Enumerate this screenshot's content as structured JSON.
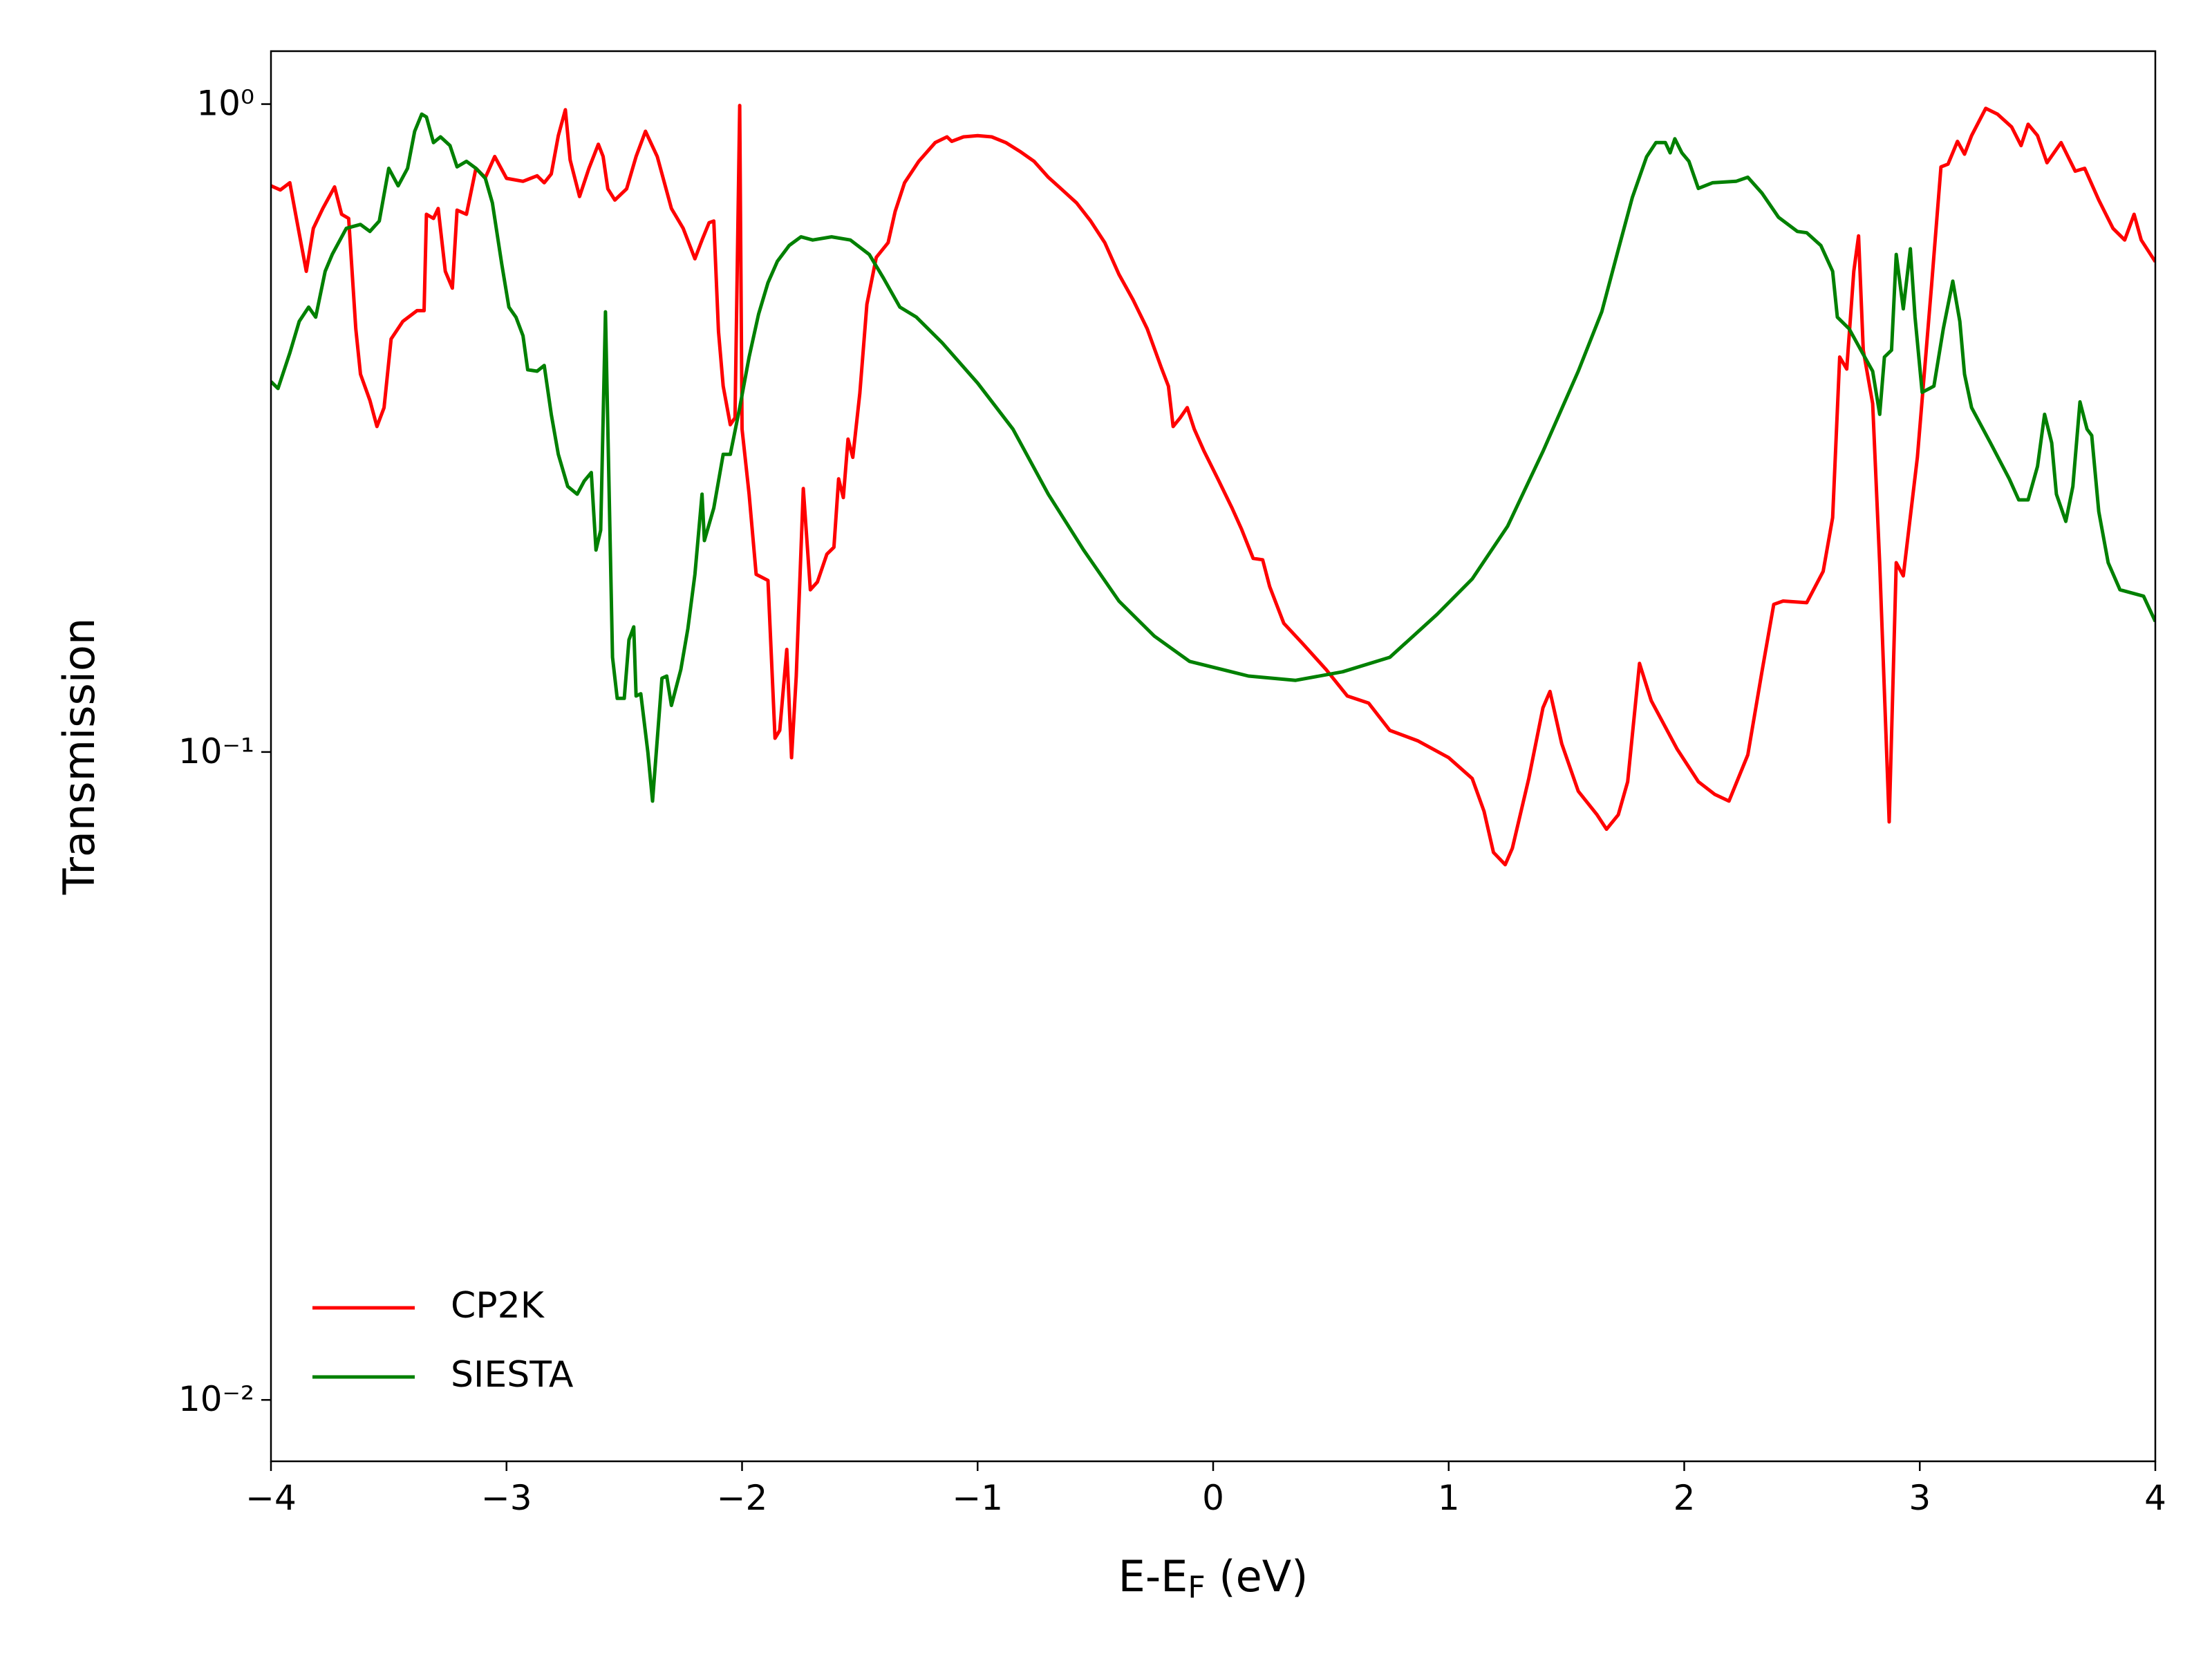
{
  "chart_data": {
    "type": "line",
    "x_label": [
      "E-E",
      "F",
      " (eV)"
    ],
    "y_label": "Transmission",
    "xlim": [
      -4,
      4
    ],
    "xticks": [
      {
        "value": -4,
        "label": "−4"
      },
      {
        "value": -3,
        "label": "−3"
      },
      {
        "value": -2,
        "label": "−2"
      },
      {
        "value": -1,
        "label": "−1"
      },
      0,
      1,
      2,
      3,
      4
    ],
    "ylim": [
      0.00804,
      1.207
    ],
    "y_scale": "log",
    "yticks": [
      {
        "value": 0.01,
        "label": "10⁻²"
      },
      {
        "value": 0.1,
        "label": "10⁻¹"
      },
      {
        "value": 1,
        "label": "10⁰"
      }
    ],
    "legend": "lower left",
    "series": [
      {
        "name": "CP2K",
        "color": "#ff0000",
        "x": [
          -4.0,
          -3.96,
          -3.92,
          -3.89,
          -3.85,
          -3.82,
          -3.78,
          -3.73,
          -3.7,
          -3.67,
          -3.64,
          -3.62,
          -3.58,
          -3.55,
          -3.52,
          -3.49,
          -3.44,
          -3.38,
          -3.35,
          -3.34,
          -3.31,
          -3.29,
          -3.26,
          -3.23,
          -3.21,
          -3.17,
          -3.13,
          -3.09,
          -3.05,
          -3.0,
          -2.93,
          -2.87,
          -2.84,
          -2.81,
          -2.78,
          -2.75,
          -2.73,
          -2.69,
          -2.65,
          -2.61,
          -2.59,
          -2.57,
          -2.54,
          -2.49,
          -2.45,
          -2.41,
          -2.36,
          -2.3,
          -2.25,
          -2.2,
          -2.17,
          -2.14,
          -2.12,
          -2.1,
          -2.08,
          -2.05,
          -2.03,
          -2.01,
          -2.0,
          -1.97,
          -1.94,
          -1.89,
          -1.86,
          -1.84,
          -1.81,
          -1.79,
          -1.77,
          -1.74,
          -1.71,
          -1.68,
          -1.64,
          -1.61,
          -1.59,
          -1.57,
          -1.55,
          -1.53,
          -1.5,
          -1.47,
          -1.43,
          -1.38,
          -1.35,
          -1.31,
          -1.25,
          -1.18,
          -1.13,
          -1.11,
          -1.06,
          -1.0,
          -0.94,
          -0.88,
          -0.82,
          -0.76,
          -0.7,
          -0.64,
          -0.58,
          -0.52,
          -0.46,
          -0.4,
          -0.34,
          -0.28,
          -0.22,
          -0.19,
          -0.17,
          -0.14,
          -0.11,
          -0.08,
          -0.04,
          0.02,
          0.08,
          0.12,
          0.17,
          0.21,
          0.24,
          0.3,
          0.38,
          0.48,
          0.57,
          0.66,
          0.75,
          0.87,
          1.0,
          1.1,
          1.15,
          1.19,
          1.24,
          1.27,
          1.34,
          1.4,
          1.43,
          1.48,
          1.55,
          1.63,
          1.67,
          1.72,
          1.76,
          1.81,
          1.86,
          1.97,
          2.06,
          2.13,
          2.19,
          2.27,
          2.33,
          2.38,
          2.42,
          2.52,
          2.59,
          2.63,
          2.66,
          2.69,
          2.72,
          2.74,
          2.76,
          2.8,
          2.83,
          2.87,
          2.9,
          2.93,
          2.99,
          3.05,
          3.09,
          3.12,
          3.16,
          3.19,
          3.22,
          3.28,
          3.33,
          3.39,
          3.43,
          3.46,
          3.5,
          3.54,
          3.6,
          3.66,
          3.7,
          3.76,
          3.82,
          3.87,
          3.91,
          3.94,
          4.0
        ],
        "values": [
          0.748,
          0.737,
          0.756,
          0.66,
          0.552,
          0.643,
          0.69,
          0.745,
          0.676,
          0.666,
          0.45,
          0.383,
          0.349,
          0.318,
          0.34,
          0.434,
          0.462,
          0.48,
          0.48,
          0.676,
          0.666,
          0.69,
          0.552,
          0.52,
          0.686,
          0.676,
          0.796,
          0.77,
          0.83,
          0.768,
          0.76,
          0.775,
          0.756,
          0.78,
          0.894,
          0.98,
          0.82,
          0.72,
          0.796,
          0.867,
          0.83,
          0.74,
          0.711,
          0.74,
          0.83,
          0.908,
          0.83,
          0.69,
          0.643,
          0.577,
          0.617,
          0.656,
          0.66,
          0.446,
          0.367,
          0.32,
          0.328,
          0.995,
          0.315,
          0.25,
          0.188,
          0.184,
          0.105,
          0.108,
          0.144,
          0.098,
          0.131,
          0.255,
          0.178,
          0.183,
          0.202,
          0.207,
          0.264,
          0.247,
          0.304,
          0.285,
          0.358,
          0.491,
          0.58,
          0.611,
          0.683,
          0.756,
          0.816,
          0.872,
          0.89,
          0.876,
          0.89,
          0.894,
          0.89,
          0.872,
          0.845,
          0.816,
          0.771,
          0.737,
          0.704,
          0.66,
          0.611,
          0.546,
          0.499,
          0.45,
          0.392,
          0.367,
          0.318,
          0.328,
          0.34,
          0.315,
          0.292,
          0.264,
          0.238,
          0.221,
          0.199,
          0.198,
          0.18,
          0.158,
          0.147,
          0.134,
          0.122,
          0.119,
          0.108,
          0.104,
          0.098,
          0.091,
          0.081,
          0.07,
          0.067,
          0.071,
          0.091,
          0.117,
          0.124,
          0.103,
          0.087,
          0.08,
          0.076,
          0.08,
          0.09,
          0.137,
          0.12,
          0.101,
          0.09,
          0.086,
          0.084,
          0.099,
          0.133,
          0.169,
          0.171,
          0.17,
          0.19,
          0.23,
          0.407,
          0.39,
          0.552,
          0.626,
          0.417,
          0.345,
          0.195,
          0.078,
          0.196,
          0.187,
          0.285,
          0.525,
          0.8,
          0.808,
          0.876,
          0.837,
          0.894,
          0.985,
          0.965,
          0.922,
          0.863,
          0.931,
          0.894,
          0.812,
          0.872,
          0.788,
          0.796,
          0.711,
          0.643,
          0.617,
          0.676,
          0.617,
          0.571
        ]
      },
      {
        "name": "SIESTA",
        "color": "#008000",
        "x": [
          -4.0,
          -3.97,
          -3.92,
          -3.88,
          -3.84,
          -3.81,
          -3.77,
          -3.74,
          -3.68,
          -3.62,
          -3.58,
          -3.54,
          -3.5,
          -3.46,
          -3.42,
          -3.39,
          -3.36,
          -3.34,
          -3.31,
          -3.28,
          -3.24,
          -3.21,
          -3.17,
          -3.13,
          -3.09,
          -3.06,
          -3.02,
          -2.99,
          -2.96,
          -2.93,
          -2.91,
          -2.87,
          -2.84,
          -2.81,
          -2.78,
          -2.74,
          -2.7,
          -2.67,
          -2.64,
          -2.62,
          -2.6,
          -2.58,
          -2.55,
          -2.53,
          -2.5,
          -2.48,
          -2.46,
          -2.45,
          -2.43,
          -2.4,
          -2.38,
          -2.34,
          -2.32,
          -2.3,
          -2.26,
          -2.23,
          -2.2,
          -2.17,
          -2.16,
          -2.12,
          -2.08,
          -2.05,
          -2.01,
          -1.97,
          -1.93,
          -1.89,
          -1.85,
          -1.8,
          -1.75,
          -1.7,
          -1.62,
          -1.54,
          -1.46,
          -1.4,
          -1.33,
          -1.26,
          -1.15,
          -1.0,
          -0.85,
          -0.7,
          -0.55,
          -0.4,
          -0.25,
          -0.1,
          0.15,
          0.35,
          0.55,
          0.75,
          0.95,
          1.1,
          1.25,
          1.4,
          1.55,
          1.65,
          1.72,
          1.78,
          1.84,
          1.88,
          1.92,
          1.94,
          1.96,
          1.99,
          2.02,
          2.06,
          2.12,
          2.22,
          2.27,
          2.33,
          2.4,
          2.48,
          2.52,
          2.58,
          2.63,
          2.65,
          2.7,
          2.75,
          2.8,
          2.83,
          2.85,
          2.88,
          2.9,
          2.93,
          2.96,
          2.98,
          3.01,
          3.06,
          3.1,
          3.14,
          3.17,
          3.19,
          3.22,
          3.3,
          3.38,
          3.42,
          3.46,
          3.5,
          3.53,
          3.56,
          3.58,
          3.62,
          3.65,
          3.68,
          3.71,
          3.73,
          3.76,
          3.8,
          3.85,
          3.9,
          3.95,
          4.0
        ],
        "values": [
          0.373,
          0.364,
          0.413,
          0.462,
          0.486,
          0.469,
          0.552,
          0.586,
          0.643,
          0.652,
          0.636,
          0.66,
          0.796,
          0.748,
          0.796,
          0.908,
          0.965,
          0.955,
          0.872,
          0.89,
          0.863,
          0.8,
          0.816,
          0.796,
          0.768,
          0.704,
          0.566,
          0.486,
          0.469,
          0.439,
          0.389,
          0.387,
          0.395,
          0.332,
          0.288,
          0.257,
          0.25,
          0.262,
          0.27,
          0.205,
          0.22,
          0.478,
          0.14,
          0.121,
          0.121,
          0.149,
          0.156,
          0.122,
          0.123,
          0.1,
          0.084,
          0.13,
          0.131,
          0.118,
          0.134,
          0.155,
          0.188,
          0.25,
          0.212,
          0.238,
          0.288,
          0.288,
          0.34,
          0.407,
          0.474,
          0.53,
          0.572,
          0.605,
          0.624,
          0.617,
          0.624,
          0.617,
          0.586,
          0.539,
          0.486,
          0.469,
          0.428,
          0.371,
          0.315,
          0.25,
          0.205,
          0.171,
          0.151,
          0.138,
          0.131,
          0.129,
          0.133,
          0.14,
          0.163,
          0.185,
          0.223,
          0.291,
          0.387,
          0.478,
          0.596,
          0.718,
          0.829,
          0.872,
          0.872,
          0.841,
          0.884,
          0.841,
          0.816,
          0.741,
          0.756,
          0.76,
          0.771,
          0.729,
          0.669,
          0.636,
          0.633,
          0.605,
          0.552,
          0.469,
          0.45,
          0.417,
          0.387,
          0.332,
          0.407,
          0.417,
          0.586,
          0.483,
          0.598,
          0.469,
          0.359,
          0.367,
          0.45,
          0.533,
          0.462,
          0.383,
          0.34,
          0.3,
          0.264,
          0.245,
          0.245,
          0.276,
          0.332,
          0.3,
          0.25,
          0.227,
          0.257,
          0.347,
          0.315,
          0.308,
          0.235,
          0.196,
          0.178,
          0.176,
          0.174,
          0.159
        ]
      }
    ]
  }
}
